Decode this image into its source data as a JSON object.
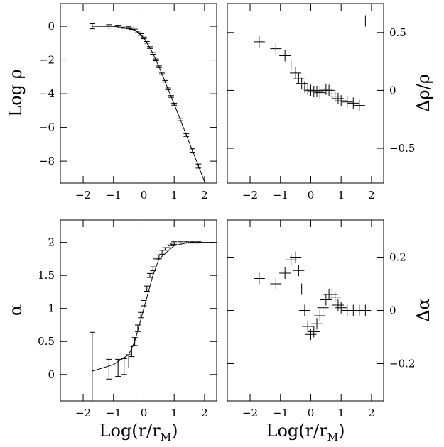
{
  "chart_data": [
    {
      "type": "errorbar",
      "ylabel": "Log ρ",
      "xlim": [
        -2.75,
        2.4
      ],
      "xticks": [
        -2,
        -1,
        0,
        1,
        2
      ],
      "ylim": [
        -9.3,
        1.35
      ],
      "yticks": [
        0,
        -2,
        -4,
        -6,
        -8
      ],
      "yaxis_side": "left",
      "color": "#000000",
      "x": [
        -1.7,
        -1.15,
        -0.85,
        -0.65,
        -0.5,
        -0.4,
        -0.3,
        -0.2,
        -0.1,
        0,
        0.1,
        0.2,
        0.3,
        0.4,
        0.5,
        0.6,
        0.7,
        0.8,
        0.9,
        1.0,
        1.2,
        1.4,
        1.6,
        1.8
      ],
      "values": [
        0,
        -0.01,
        -0.02,
        -0.05,
        -0.09,
        -0.14,
        -0.22,
        -0.33,
        -0.49,
        -0.69,
        -0.95,
        -1.26,
        -1.61,
        -1.99,
        -2.4,
        -2.82,
        -3.26,
        -3.71,
        -4.16,
        -4.62,
        -5.53,
        -6.45,
        -7.37,
        -8.29
      ],
      "errors": [
        0.15,
        0.1,
        0.08,
        0.07,
        0.06,
        0.05,
        0.05,
        0.05,
        0.05,
        0.05,
        0.05,
        0.05,
        0.05,
        0.05,
        0.05,
        0.05,
        0.05,
        0.05,
        0.05,
        0.06,
        0.07,
        0.08,
        0.1,
        0.12
      ],
      "curve": {
        "x": [
          -1.7,
          -1,
          -0.5,
          -0.25,
          0,
          0.25,
          0.5,
          1,
          1.5,
          2,
          2.1
        ],
        "values": [
          0,
          -0.01,
          -0.095,
          -0.27,
          -0.69,
          -1.43,
          -2.4,
          -4.62,
          -6.91,
          -9.21,
          -9.67
        ]
      }
    },
    {
      "type": "cross",
      "ylabel": "Δρ/ρ",
      "xlim": [
        -2.75,
        2.4
      ],
      "xticks": [
        -2,
        -1,
        0,
        1,
        2
      ],
      "ylim": [
        -0.8,
        0.75
      ],
      "yticks": [
        0.5,
        0,
        -0.5
      ],
      "yaxis_side": "right",
      "color": "#000000",
      "x": [
        -1.7,
        -1.15,
        -0.85,
        -0.65,
        -0.5,
        -0.4,
        -0.3,
        -0.2,
        -0.1,
        0,
        0.1,
        0.2,
        0.3,
        0.4,
        0.5,
        0.6,
        0.7,
        0.8,
        0.9,
        1.0,
        1.2,
        1.4,
        1.6,
        1.8
      ],
      "values": [
        0.42,
        0.36,
        0.3,
        0.22,
        0.15,
        0.1,
        0.06,
        0.03,
        0.01,
        0,
        -0.01,
        -0.01,
        -0.02,
        0,
        0.01,
        0,
        -0.03,
        -0.05,
        -0.07,
        -0.09,
        -0.1,
        -0.11,
        -0.13,
        0.6
      ]
    },
    {
      "type": "errorbar",
      "ylabel": "α",
      "xlabel": {
        "main": "Log(r/r",
        "sub": "M",
        "end": ")"
      },
      "xlim": [
        -2.75,
        2.4
      ],
      "xticks": [
        -2,
        -1,
        0,
        1,
        2
      ],
      "ylim": [
        -0.4,
        2.34
      ],
      "yticks": [
        0,
        0.5,
        1,
        1.5,
        2
      ],
      "yaxis_side": "left",
      "color": "#000000",
      "x": [
        -1.7,
        -1.15,
        -0.85,
        -0.65,
        -0.5,
        -0.4,
        -0.3,
        -0.2,
        -0.1,
        0,
        0.1,
        0.2,
        0.3,
        0.4,
        0.5,
        0.6,
        0.7,
        0.8,
        0.9,
        1.0,
        1.2,
        1.4,
        1.6,
        1.8
      ],
      "values": [
        0.12,
        0.08,
        0.1,
        0.12,
        0.2,
        0.35,
        0.5,
        0.7,
        0.9,
        1.08,
        1.3,
        1.5,
        1.6,
        1.72,
        1.78,
        1.85,
        1.9,
        1.94,
        1.97,
        1.99,
        2,
        2,
        2,
        2
      ],
      "errors": [
        0.52,
        0.15,
        0.13,
        0.12,
        0.1,
        0.08,
        0.06,
        0.05,
        0.04,
        0.04,
        0.04,
        0.03,
        0.03,
        0.03,
        0.03,
        0.03,
        0.02,
        0.02,
        0.02,
        0.02,
        0.01,
        0.01,
        0.01,
        0.01
      ],
      "curve": {
        "x": [
          -1.7,
          -1,
          -0.5,
          -0.3,
          0,
          0.3,
          0.5,
          1,
          1.5,
          2.3
        ],
        "values": [
          0.05,
          0.15,
          0.3,
          0.5,
          1.0,
          1.5,
          1.75,
          1.95,
          2,
          2
        ]
      }
    },
    {
      "type": "cross",
      "ylabel": "Δα",
      "xlabel": {
        "main": "Log(r/r",
        "sub": "M",
        "end": ")"
      },
      "xlim": [
        -2.75,
        2.4
      ],
      "xticks": [
        -2,
        -1,
        0,
        1,
        2
      ],
      "ylim": [
        -0.34,
        0.34
      ],
      "yticks": [
        0.2,
        0,
        -0.2
      ],
      "yaxis_side": "right",
      "color": "#000000",
      "x": [
        -1.7,
        -1.15,
        -0.85,
        -0.65,
        -0.5,
        -0.4,
        -0.3,
        -0.2,
        -0.1,
        0,
        0.1,
        0.2,
        0.3,
        0.4,
        0.5,
        0.6,
        0.7,
        0.8,
        0.9,
        1.0,
        1.2,
        1.4,
        1.6,
        1.8
      ],
      "values": [
        0.12,
        0.1,
        0.14,
        0.19,
        0.2,
        0.15,
        0.08,
        0,
        -0.06,
        -0.09,
        -0.08,
        -0.05,
        -0.02,
        0.01,
        0.04,
        0.06,
        0.06,
        0.05,
        0.02,
        0.01,
        0,
        0,
        0,
        0
      ]
    }
  ]
}
